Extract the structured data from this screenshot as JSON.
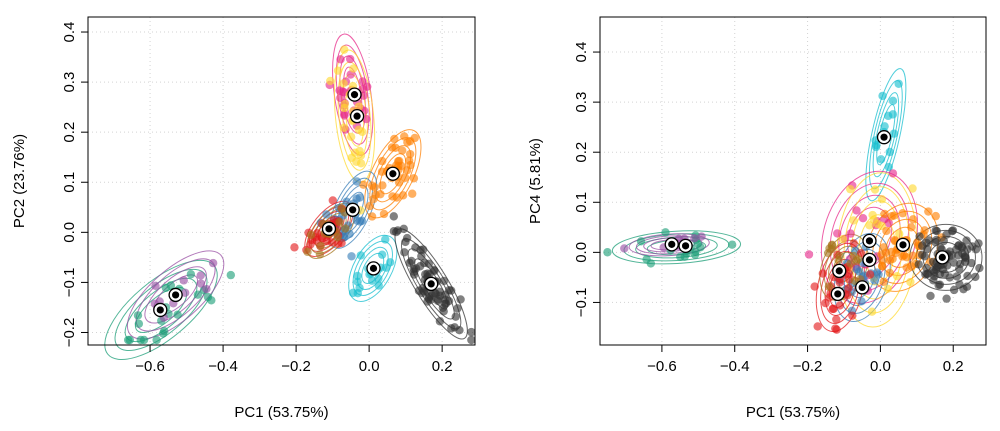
{
  "chart_data": [
    {
      "type": "scatter",
      "title": "",
      "xlabel": "PC1 (53.75%)",
      "ylabel": "PC2 (23.76%)",
      "xlim": [
        -0.77,
        0.29
      ],
      "ylim": [
        -0.225,
        0.43
      ],
      "xticks": [
        -0.6,
        -0.4,
        -0.2,
        0.0,
        0.2
      ],
      "yticks": [
        -0.2,
        -0.1,
        0.0,
        0.1,
        0.2,
        0.3,
        0.4
      ],
      "xtick_labels": [
        "−0.6",
        "−0.4",
        "−0.2",
        "0.0",
        "0.2"
      ],
      "ytick_labels": [
        "−0.2",
        "−0.1",
        "0.0",
        "0.1",
        "0.2",
        "0.3",
        "0.4"
      ],
      "grid": true,
      "groups": [
        {
          "color": "#e7298a",
          "cx": -0.045,
          "cy": 0.275,
          "sx": 0.025,
          "sy": 0.055,
          "r": -0.4,
          "n": 30,
          "seed": 11
        },
        {
          "color": "#ffd92f",
          "cx": -0.04,
          "cy": 0.232,
          "sx": 0.025,
          "sy": 0.06,
          "r": -0.3,
          "n": 25,
          "seed": 12
        },
        {
          "color": "#ff7f00",
          "cx": 0.065,
          "cy": 0.117,
          "sx": 0.035,
          "sy": 0.04,
          "r": 0.6,
          "n": 45,
          "seed": 13
        },
        {
          "color": "#377eb8",
          "cx": -0.045,
          "cy": 0.045,
          "sx": 0.03,
          "sy": 0.035,
          "r": 0.6,
          "n": 25,
          "seed": 14
        },
        {
          "color": "#e41a1c",
          "cx": -0.11,
          "cy": 0.007,
          "sx": 0.03,
          "sy": 0.025,
          "r": 0.6,
          "n": 30,
          "seed": 15
        },
        {
          "color": "#a6761d",
          "cx": -0.105,
          "cy": 0.003,
          "sx": 0.03,
          "sy": 0.025,
          "r": 0.6,
          "n": 15,
          "seed": 16
        },
        {
          "color": "#17becf",
          "cx": 0.01,
          "cy": -0.072,
          "sx": 0.03,
          "sy": 0.03,
          "r": 0.5,
          "n": 18,
          "seed": 17
        },
        {
          "color": "#333333",
          "cx": 0.17,
          "cy": -0.103,
          "sx": 0.045,
          "sy": 0.05,
          "r": -0.85,
          "n": 70,
          "seed": 18
        },
        {
          "color": "#1b9e77",
          "cx": -0.57,
          "cy": -0.155,
          "sx": 0.07,
          "sy": 0.045,
          "r": 0.7,
          "n": 22,
          "seed": 19
        },
        {
          "color": "#984ea3",
          "cx": -0.53,
          "cy": -0.125,
          "sx": 0.06,
          "sy": 0.04,
          "r": 0.7,
          "n": 12,
          "seed": 20
        }
      ],
      "centroids": [
        {
          "x": -0.04,
          "y": 0.275
        },
        {
          "x": -0.033,
          "y": 0.232
        },
        {
          "x": 0.065,
          "y": 0.117
        },
        {
          "x": -0.045,
          "y": 0.045
        },
        {
          "x": -0.11,
          "y": 0.007
        },
        {
          "x": 0.012,
          "y": -0.072
        },
        {
          "x": 0.17,
          "y": -0.103
        },
        {
          "x": -0.572,
          "y": -0.155
        },
        {
          "x": -0.53,
          "y": -0.125
        }
      ]
    },
    {
      "type": "scatter",
      "title": "",
      "xlabel": "PC1 (53.75%)",
      "ylabel": "PC4 (5.81%)",
      "xlim": [
        -0.77,
        0.29
      ],
      "ylim": [
        -0.185,
        0.47
      ],
      "xticks": [
        -0.6,
        -0.4,
        -0.2,
        0.0,
        0.2
      ],
      "yticks": [
        -0.1,
        0.0,
        0.1,
        0.2,
        0.3,
        0.4
      ],
      "xtick_labels": [
        "−0.6",
        "−0.4",
        "−0.2",
        "0.0",
        "0.2"
      ],
      "ytick_labels": [
        "−0.1",
        "0.0",
        "0.1",
        "0.2",
        "0.3",
        "0.4"
      ],
      "grid": true,
      "groups": [
        {
          "color": "#17becf",
          "cx": 0.015,
          "cy": 0.235,
          "sx": 0.025,
          "sy": 0.06,
          "r": 0.7,
          "n": 14,
          "seed": 31
        },
        {
          "color": "#e7298a",
          "cx": -0.03,
          "cy": 0.03,
          "sx": 0.06,
          "sy": 0.06,
          "r": 0.2,
          "n": 20,
          "seed": 32
        },
        {
          "color": "#ffd92f",
          "cx": -0.01,
          "cy": 0.005,
          "sx": 0.05,
          "sy": 0.07,
          "r": 0.1,
          "n": 18,
          "seed": 33
        },
        {
          "color": "#ff7f00",
          "cx": 0.06,
          "cy": 0.01,
          "sx": 0.045,
          "sy": 0.04,
          "r": 0.2,
          "n": 45,
          "seed": 34
        },
        {
          "color": "#377eb8",
          "cx": -0.05,
          "cy": -0.05,
          "sx": 0.035,
          "sy": 0.04,
          "r": 0.3,
          "n": 25,
          "seed": 35
        },
        {
          "color": "#e41a1c",
          "cx": -0.11,
          "cy": -0.07,
          "sx": 0.03,
          "sy": 0.04,
          "r": 0.3,
          "n": 30,
          "seed": 36
        },
        {
          "color": "#a6761d",
          "cx": -0.1,
          "cy": -0.03,
          "sx": 0.03,
          "sy": 0.03,
          "r": 0.3,
          "n": 15,
          "seed": 37
        },
        {
          "color": "#333333",
          "cx": 0.18,
          "cy": -0.01,
          "sx": 0.045,
          "sy": 0.03,
          "r": 0.0,
          "n": 80,
          "seed": 38
        },
        {
          "color": "#1b9e77",
          "cx": -0.56,
          "cy": 0.01,
          "sx": 0.08,
          "sy": 0.015,
          "r": 0.2,
          "n": 18,
          "seed": 39
        },
        {
          "color": "#984ea3",
          "cx": -0.58,
          "cy": 0.015,
          "sx": 0.05,
          "sy": 0.01,
          "r": 0.2,
          "n": 10,
          "seed": 40
        }
      ],
      "centroids": [
        {
          "x": 0.01,
          "y": 0.23
        },
        {
          "x": -0.03,
          "y": 0.023
        },
        {
          "x": 0.062,
          "y": 0.015
        },
        {
          "x": -0.03,
          "y": -0.015
        },
        {
          "x": 0.17,
          "y": -0.01
        },
        {
          "x": -0.113,
          "y": -0.037
        },
        {
          "x": -0.05,
          "y": -0.07
        },
        {
          "x": -0.117,
          "y": -0.083
        },
        {
          "x": -0.573,
          "y": 0.016
        },
        {
          "x": -0.535,
          "y": 0.013
        }
      ]
    }
  ]
}
